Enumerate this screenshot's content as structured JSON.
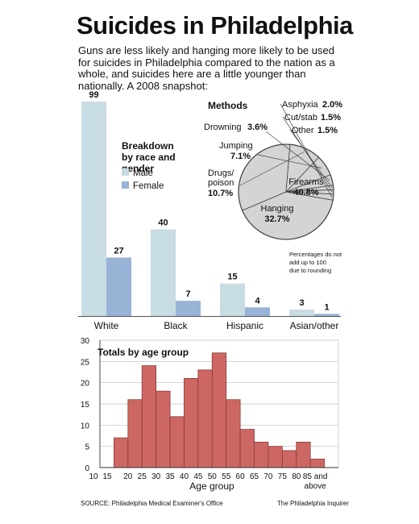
{
  "header": {
    "title": "Suicides in Philadelphia",
    "subtitle": "Guns are less likely and hanging more likely to be used for suicides in Philadelphia compared to the nation as a whole, and suicides here are a little younger than nationally. A 2008 snapshot:"
  },
  "colors": {
    "male": "#c8dce3",
    "female": "#98b3d6",
    "age": "#cd6763",
    "pie": "#d4d4d6"
  },
  "footer": {
    "source": "SOURCE: Philadelphia Medical Examiner's Office",
    "credit": "The Philadelphia Inquirer"
  },
  "chart_data": [
    {
      "type": "bar",
      "title": "",
      "legend_title": "Breakdown by race and gender",
      "categories": [
        "White",
        "Black",
        "Hispanic",
        "Asian/other"
      ],
      "series": [
        {
          "name": "Male",
          "values": [
            99,
            40,
            15,
            3
          ]
        },
        {
          "name": "Female",
          "values": [
            27,
            7,
            4,
            1
          ]
        }
      ]
    },
    {
      "type": "pie",
      "title": "Methods",
      "slices": [
        {
          "label": "Firearms",
          "value": 40.8,
          "display": "40.8%"
        },
        {
          "label": "Hanging",
          "value": 32.7,
          "display": "32.7%"
        },
        {
          "label": "Drugs/ poison",
          "value": 10.7,
          "display": "10.7%"
        },
        {
          "label": "Jumping",
          "value": 7.1,
          "display": "7.1%"
        },
        {
          "label": "Drowning",
          "value": 3.6,
          "display": "3.6%"
        },
        {
          "label": "Other",
          "value": 1.5,
          "display": "1.5%"
        },
        {
          "label": "Cut/stab",
          "value": 1.5,
          "display": "1.5%"
        },
        {
          "label": "Asphyxia",
          "value": 2.0,
          "display": "2.0%"
        }
      ],
      "note": "Percentages do not add up to 100 due to rounding"
    },
    {
      "type": "bar",
      "title": "Totals by age group",
      "xlabel": "Age group",
      "ylabel": "",
      "ylim": [
        0,
        30
      ],
      "yticks": [
        0,
        5,
        10,
        15,
        20,
        25,
        30
      ],
      "grid": true,
      "xticks": [
        "10",
        "15",
        "20",
        "25",
        "30",
        "35",
        "40",
        "45",
        "50",
        "55",
        "60",
        "65",
        "70",
        "75",
        "80",
        "85 and above"
      ],
      "bins": [
        {
          "start": 15,
          "value": 7
        },
        {
          "start": 20,
          "value": 16
        },
        {
          "start": 25,
          "value": 24
        },
        {
          "start": 30,
          "value": 18
        },
        {
          "start": 35,
          "value": 12
        },
        {
          "start": 40,
          "value": 21
        },
        {
          "start": 45,
          "value": 23
        },
        {
          "start": 50,
          "value": 27
        },
        {
          "start": 55,
          "value": 16
        },
        {
          "start": 60,
          "value": 9
        },
        {
          "start": 65,
          "value": 6
        },
        {
          "start": 70,
          "value": 5
        },
        {
          "start": 75,
          "value": 4
        },
        {
          "start": 80,
          "value": 6
        },
        {
          "start": 85,
          "value": 2
        }
      ]
    }
  ]
}
